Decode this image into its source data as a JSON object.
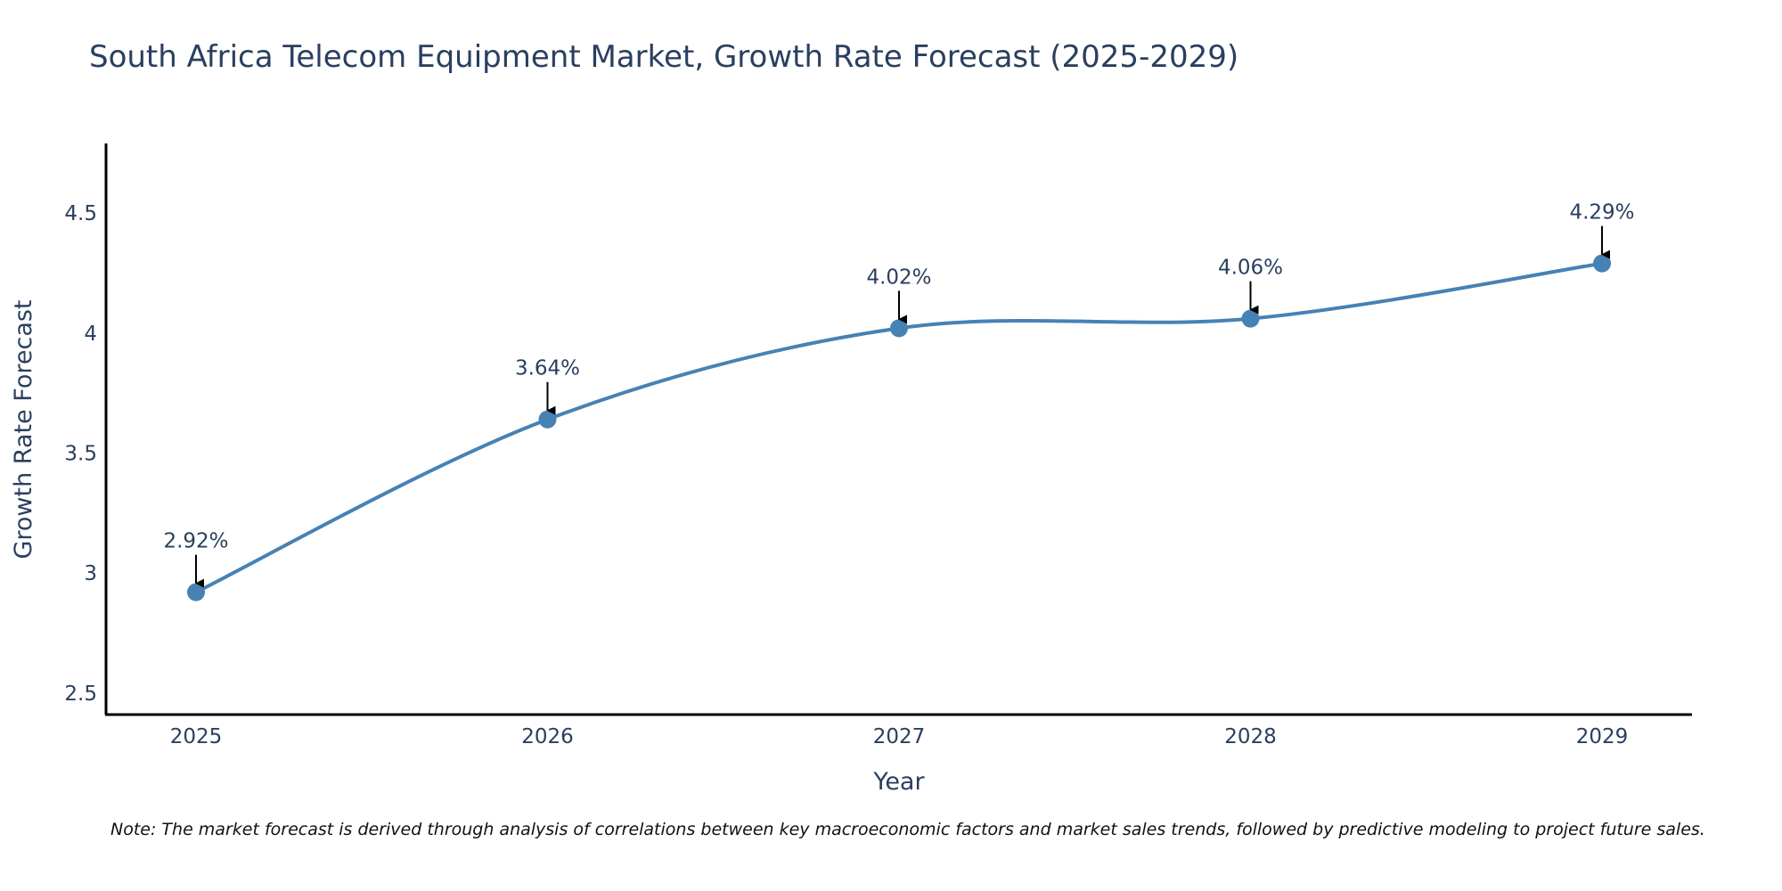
{
  "chart_data": {
    "type": "line",
    "title": "South Africa Telecom Equipment Market, Growth Rate Forecast (2025-2029)",
    "xlabel": "Year",
    "ylabel": "Growth Rate Forecast",
    "categories": [
      "2025",
      "2026",
      "2027",
      "2028",
      "2029"
    ],
    "values": [
      2.92,
      3.64,
      4.02,
      4.06,
      4.29
    ],
    "data_labels": [
      "2.92%",
      "3.64%",
      "4.02%",
      "4.06%",
      "4.29%"
    ],
    "y_ticks": [
      2.5,
      3,
      3.5,
      4,
      4.5
    ],
    "y_tick_labels": [
      "2.5",
      "3",
      "3.5",
      "4",
      "4.5"
    ],
    "ylim": [
      2.41,
      4.79
    ],
    "grid": false,
    "line_color": "#4682b4",
    "marker_color": "#4682b4",
    "arrow_color": "#000000",
    "note": "Note: The market forecast is derived through analysis of correlations between key macroeconomic factors and market sales trends, followed by predictive modeling to project future sales."
  }
}
